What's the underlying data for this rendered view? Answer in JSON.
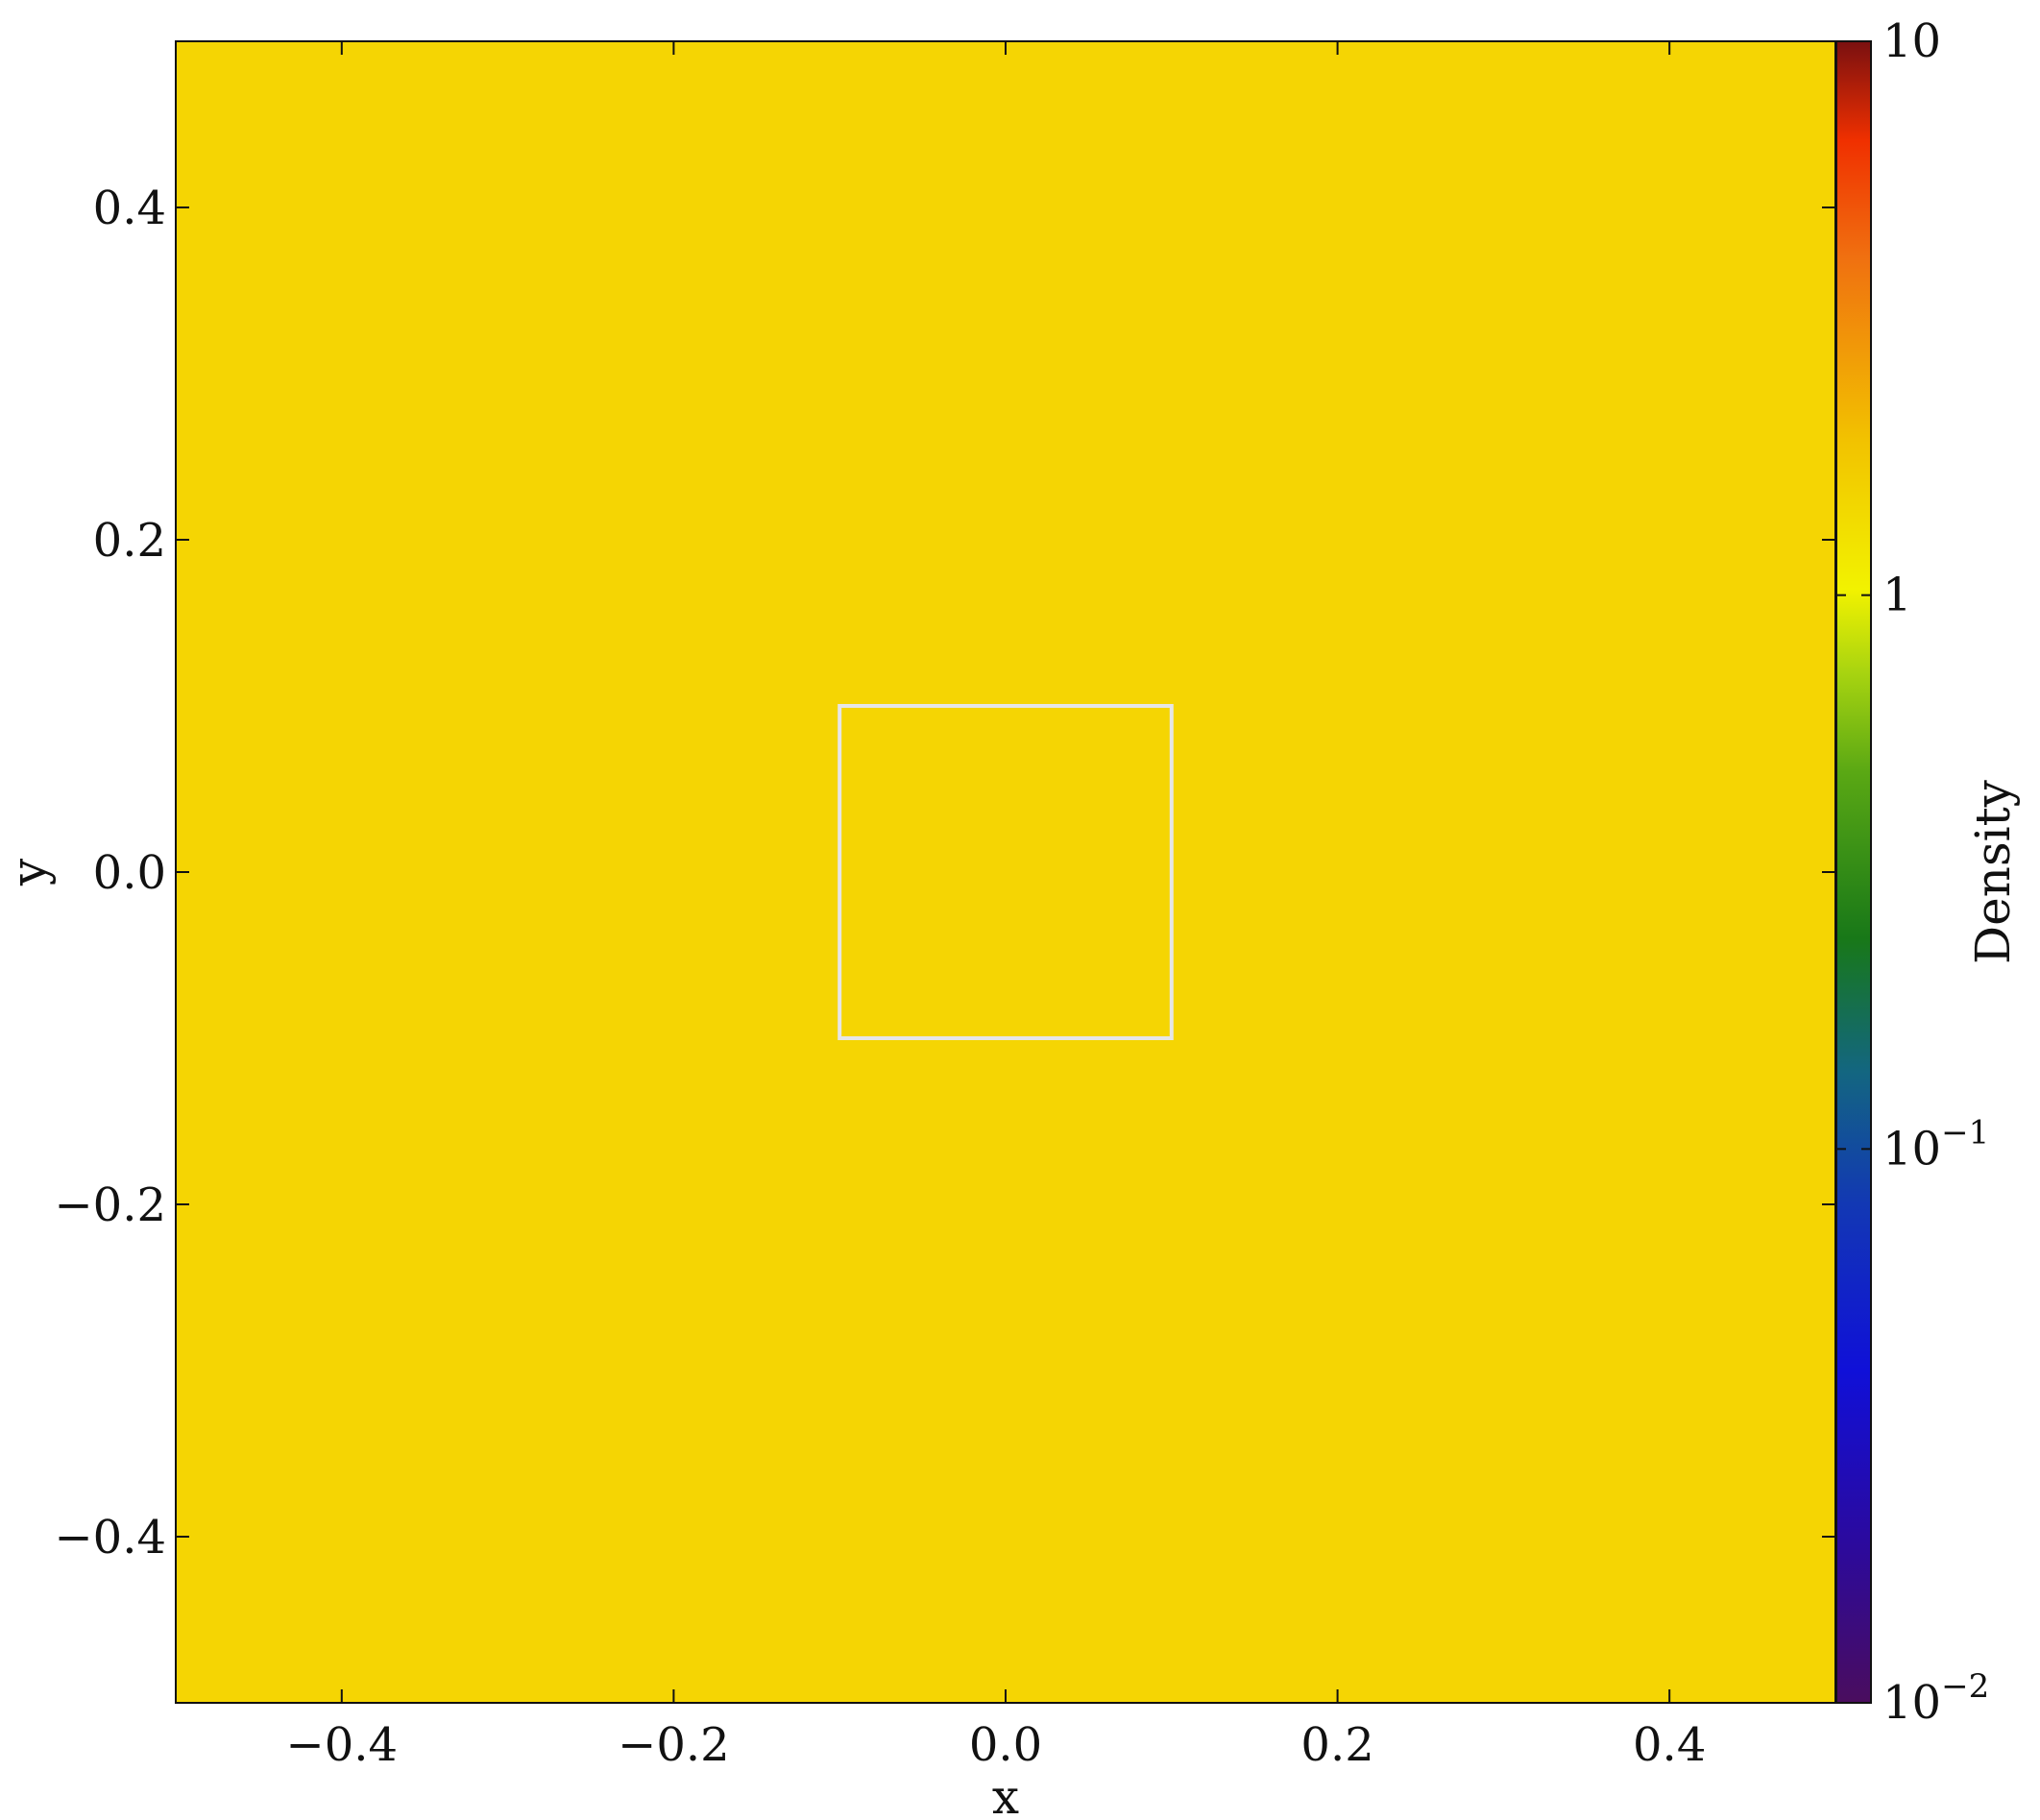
{
  "chart_data": {
    "type": "heatmap",
    "title": "",
    "xlabel": "x",
    "ylabel": "y",
    "xlim": [
      -0.5,
      0.5
    ],
    "ylim": [
      -0.5,
      0.5
    ],
    "x_ticks": [
      -0.4,
      -0.2,
      0.0,
      0.2,
      0.4
    ],
    "y_ticks": [
      -0.4,
      -0.2,
      0.0,
      0.2,
      0.4
    ],
    "x_tick_labels": [
      "−0.4",
      "−0.2",
      "0.0",
      "0.2",
      "0.4"
    ],
    "y_tick_labels": [
      "−0.4",
      "−0.2",
      "0.0",
      "0.2",
      "0.4"
    ],
    "field": {
      "description": "uniform density field",
      "value": 1.0,
      "color": "#f5d503"
    },
    "overlay_box": {
      "x": [
        -0.1,
        0.1
      ],
      "y": [
        -0.1,
        0.1
      ],
      "color": "#e6e6e6"
    },
    "colorbar": {
      "label": "Density",
      "scale": "log",
      "range": [
        0.01,
        10
      ],
      "ticks": [
        {
          "value": 10,
          "base": "10",
          "exp": ""
        },
        {
          "value": 1,
          "base": "1",
          "exp": ""
        },
        {
          "value": 0.1,
          "base": "10",
          "exp": "−1"
        },
        {
          "value": 0.01,
          "base": "10",
          "exp": "−2"
        }
      ],
      "colormap": [
        {
          "pos": 0.0,
          "color": "#4a0d5e"
        },
        {
          "pos": 0.1,
          "color": "#2a0aa0"
        },
        {
          "pos": 0.2,
          "color": "#1010d8"
        },
        {
          "pos": 0.3,
          "color": "#1238b4"
        },
        {
          "pos": 0.38,
          "color": "#136680"
        },
        {
          "pos": 0.46,
          "color": "#187818"
        },
        {
          "pos": 0.56,
          "color": "#5aa814"
        },
        {
          "pos": 0.62,
          "color": "#a8d410"
        },
        {
          "pos": 0.67,
          "color": "#f2f200"
        },
        {
          "pos": 0.76,
          "color": "#f2c200"
        },
        {
          "pos": 0.87,
          "color": "#f07010"
        },
        {
          "pos": 0.94,
          "color": "#f03000"
        },
        {
          "pos": 1.0,
          "color": "#7a1010"
        }
      ]
    }
  }
}
